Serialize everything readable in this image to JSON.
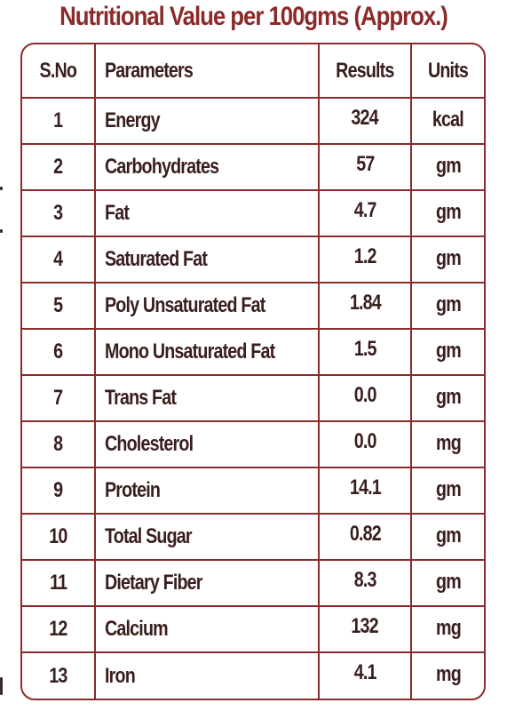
{
  "title": "Nutritional Value per 100gms (Approx.)",
  "table": {
    "headers": {
      "sno": "S.No",
      "parameters": "Parameters",
      "results": "Results",
      "units": "Units"
    },
    "rows": [
      {
        "sno": "1",
        "parameter": "Energy",
        "result": "324",
        "unit": "kcal"
      },
      {
        "sno": "2",
        "parameter": "Carbohydrates",
        "result": "57",
        "unit": "gm"
      },
      {
        "sno": "3",
        "parameter": "Fat",
        "result": "4.7",
        "unit": "gm"
      },
      {
        "sno": "4",
        "parameter": "Saturated Fat",
        "result": "1.2",
        "unit": "gm"
      },
      {
        "sno": "5",
        "parameter": "Poly Unsaturated Fat",
        "result": "1.84",
        "unit": "gm"
      },
      {
        "sno": "6",
        "parameter": "Mono Unsaturated Fat",
        "result": "1.5",
        "unit": "gm"
      },
      {
        "sno": "7",
        "parameter": "Trans Fat",
        "result": "0.0",
        "unit": "gm"
      },
      {
        "sno": "8",
        "parameter": "Cholesterol",
        "result": "0.0",
        "unit": "mg"
      },
      {
        "sno": "9",
        "parameter": "Protein",
        "result": "14.1",
        "unit": "gm"
      },
      {
        "sno": "10",
        "parameter": "Total Sugar",
        "result": "0.82",
        "unit": "gm"
      },
      {
        "sno": "11",
        "parameter": "Dietary Fiber",
        "result": "8.3",
        "unit": "gm"
      },
      {
        "sno": "12",
        "parameter": "Calcium",
        "result": "132",
        "unit": "mg"
      },
      {
        "sno": "13",
        "parameter": "Iron",
        "result": "4.1",
        "unit": "mg"
      }
    ]
  },
  "colors": {
    "accent": "#8b2a2a",
    "text": "#3a1e1e"
  }
}
